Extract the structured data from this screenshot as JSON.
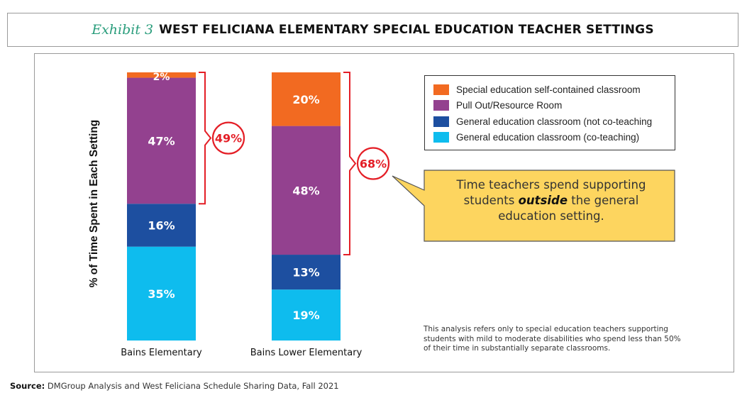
{
  "header": {
    "exhibit_label": "Exhibit 3",
    "title": "WEST FELICIANA ELEMENTARY SPECIAL EDUCATION TEACHER SETTINGS"
  },
  "chart_data": {
    "type": "bar",
    "stacked": true,
    "title": "WEST FELICIANA ELEMENTARY SPECIAL EDUCATION TEACHER SETTINGS",
    "xlabel": "",
    "ylabel": "% of Time Spent in Each Setting",
    "ylim": [
      0,
      100
    ],
    "categories": [
      "Bains Elementary",
      "Bains Lower Elementary"
    ],
    "series": [
      {
        "name": "General education classroom (co-teaching)",
        "color": "#0ebcee",
        "values": [
          35,
          19
        ],
        "labels": [
          "35%",
          "19%"
        ]
      },
      {
        "name": "General education classroom (not co-teaching",
        "color": "#1d4fa0",
        "values": [
          16,
          13
        ],
        "labels": [
          "16%",
          "13%"
        ]
      },
      {
        "name": "Pull Out/Resource Room",
        "color": "#93418f",
        "values": [
          47,
          48
        ],
        "labels": [
          "47%",
          "48%"
        ]
      },
      {
        "name": "Special education self-contained classroom",
        "color": "#f26a21",
        "values": [
          2,
          20
        ],
        "labels": [
          "2%",
          "20%"
        ]
      }
    ],
    "brackets": [
      {
        "category": "Bains Elementary",
        "label": "49%",
        "value": 49,
        "from": 51,
        "to": 100
      },
      {
        "category": "Bains Lower Elementary",
        "label": "68%",
        "value": 68,
        "from": 32,
        "to": 100
      }
    ],
    "bracket_color": "#e41e26",
    "legend_placement": "top-right",
    "grid": false
  },
  "legend": {
    "items": [
      {
        "label": "Special education self-contained classroom",
        "color": "#f26a21"
      },
      {
        "label": "Pull Out/Resource Room",
        "color": "#93418f"
      },
      {
        "label": "General education classroom (not co-teaching",
        "color": "#1d4fa0"
      },
      {
        "label": "General education classroom (co-teaching)",
        "color": "#0ebcee"
      }
    ]
  },
  "callout": {
    "line1": "Time teachers spend supporting",
    "line2_pre": "students ",
    "line2_em": "outside",
    "line2_post": " the general",
    "line3": "education setting.",
    "fill": "#fdd55f",
    "stroke": "#555555"
  },
  "note": "This analysis refers only to special education teachers supporting students with mild to moderate disabilities who spend less than 50% of their time in substantially separate classrooms.",
  "source": {
    "label": "Source:",
    "text": " DMGroup Analysis and West Feliciana Schedule Sharing Data, Fall 2021"
  }
}
